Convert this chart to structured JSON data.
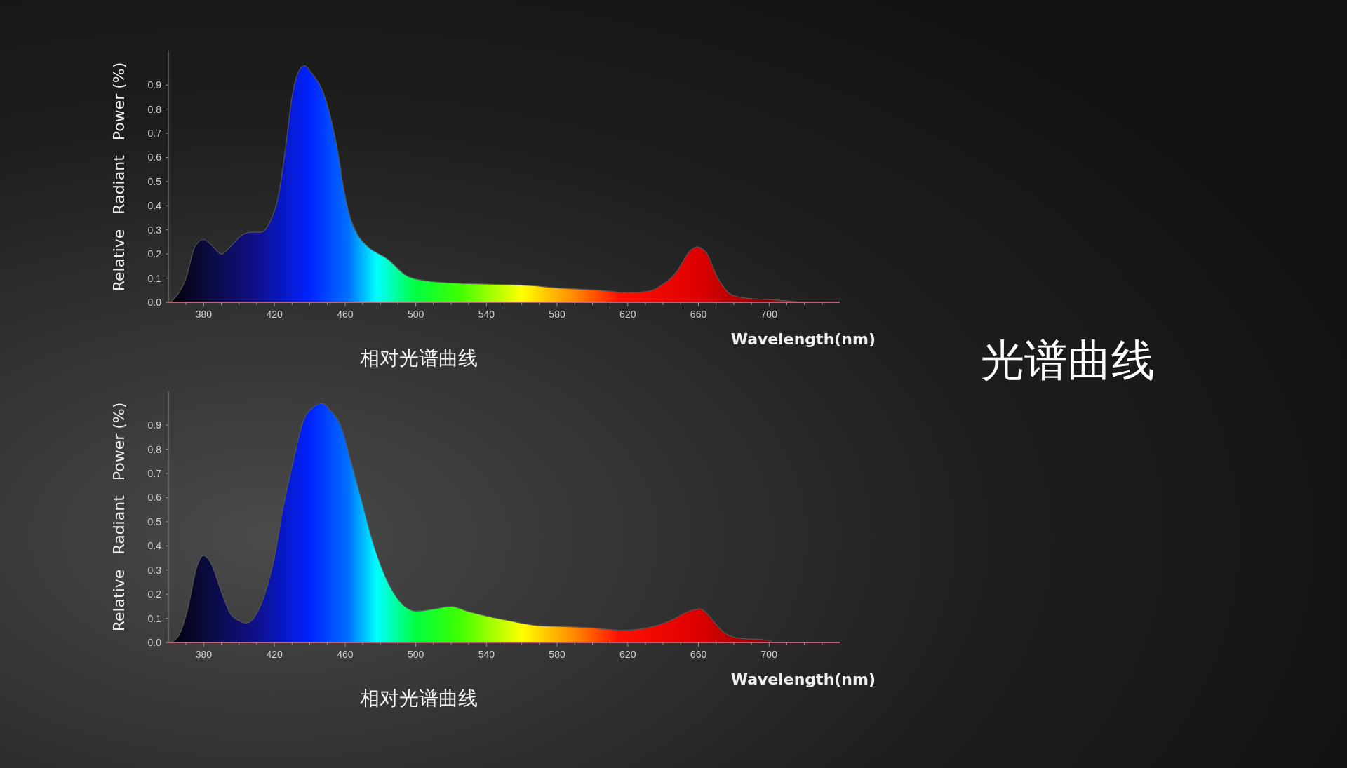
{
  "chart_data": [
    {
      "type": "area",
      "title": "相对光谱曲线",
      "xlabel": "Wavelength(nm)",
      "ylabel": "Relative   Radiant   Power (%)",
      "annotations": [
        "光谱曲线"
      ],
      "grid": false,
      "xlim": [
        360,
        740
      ],
      "ylim": [
        0,
        1.04
      ],
      "xticks": [
        {
          "value": 370,
          "label": null
        },
        380,
        {
          "value": 390,
          "label": null
        },
        {
          "value": 400,
          "label": null
        },
        {
          "value": 410,
          "label": null
        },
        420,
        {
          "value": 430,
          "label": null
        },
        {
          "value": 440,
          "label": null
        },
        {
          "value": 450,
          "label": null
        },
        460,
        {
          "value": 470,
          "label": null
        },
        {
          "value": 480,
          "label": null
        },
        {
          "value": 490,
          "label": null
        },
        500,
        {
          "value": 510,
          "label": null
        },
        {
          "value": 520,
          "label": null
        },
        {
          "value": 530,
          "label": null
        },
        540,
        {
          "value": 550,
          "label": null
        },
        {
          "value": 560,
          "label": null
        },
        {
          "value": 570,
          "label": null
        },
        580,
        {
          "value": 590,
          "label": null
        },
        {
          "value": 600,
          "label": null
        },
        {
          "value": 610,
          "label": null
        },
        620,
        {
          "value": 630,
          "label": null
        },
        {
          "value": 640,
          "label": null
        },
        {
          "value": 650,
          "label": null
        },
        660,
        {
          "value": 670,
          "label": null
        },
        {
          "value": 680,
          "label": null
        },
        {
          "value": 690,
          "label": null
        },
        700,
        {
          "value": 710,
          "label": null
        },
        {
          "value": 720,
          "label": null
        },
        {
          "value": 730,
          "label": null
        }
      ],
      "yticks": [
        {
          "value": 0,
          "label": "0.0"
        },
        0.1,
        0.2,
        0.3,
        0.4,
        0.5,
        0.6,
        0.7,
        0.8,
        0.9
      ],
      "series": [
        {
          "color": "#555555",
          "x": [
            361,
            364,
            370,
            375,
            380,
            384,
            390,
            395,
            402,
            407,
            412,
            418,
            422,
            426,
            430,
            434,
            437,
            441,
            447,
            452,
            456,
            459,
            463,
            468,
            473,
            484,
            495,
            505,
            521,
            543,
            564,
            580,
            604,
            620,
            631,
            639,
            647,
            655,
            659,
            664,
            671,
            679,
            687,
            703,
            719
          ],
          "values": [
            0,
            0.02,
            0.1,
            0.23,
            0.26,
            0.24,
            0.2,
            0.23,
            0.28,
            0.29,
            0.29,
            0.34,
            0.43,
            0.62,
            0.85,
            0.96,
            0.98,
            0.95,
            0.88,
            0.76,
            0.62,
            0.48,
            0.35,
            0.27,
            0.23,
            0.18,
            0.11,
            0.09,
            0.08,
            0.075,
            0.07,
            0.06,
            0.05,
            0.04,
            0.045,
            0.07,
            0.12,
            0.21,
            0.23,
            0.21,
            0.1,
            0.03,
            0.017,
            0.01,
            0
          ]
        }
      ]
    },
    {
      "type": "area",
      "title": "相对光谱曲线",
      "xlabel": "Wavelength(nm)",
      "ylabel": "Relative   Radiant   Power (%)",
      "grid": false,
      "xlim": [
        360,
        740
      ],
      "ylim": [
        0,
        1.04
      ],
      "xticks": [
        {
          "value": 370,
          "label": null
        },
        380,
        {
          "value": 390,
          "label": null
        },
        {
          "value": 400,
          "label": null
        },
        {
          "value": 410,
          "label": null
        },
        420,
        {
          "value": 430,
          "label": null
        },
        {
          "value": 440,
          "label": null
        },
        {
          "value": 450,
          "label": null
        },
        460,
        {
          "value": 470,
          "label": null
        },
        {
          "value": 480,
          "label": null
        },
        {
          "value": 490,
          "label": null
        },
        500,
        {
          "value": 510,
          "label": null
        },
        {
          "value": 520,
          "label": null
        },
        {
          "value": 530,
          "label": null
        },
        540,
        {
          "value": 550,
          "label": null
        },
        {
          "value": 560,
          "label": null
        },
        {
          "value": 570,
          "label": null
        },
        580,
        {
          "value": 590,
          "label": null
        },
        {
          "value": 600,
          "label": null
        },
        {
          "value": 610,
          "label": null
        },
        620,
        {
          "value": 630,
          "label": null
        },
        {
          "value": 640,
          "label": null
        },
        {
          "value": 650,
          "label": null
        },
        660,
        {
          "value": 670,
          "label": null
        },
        {
          "value": 680,
          "label": null
        },
        {
          "value": 690,
          "label": null
        },
        700,
        {
          "value": 710,
          "label": null
        },
        {
          "value": 720,
          "label": null
        },
        {
          "value": 730,
          "label": null
        }
      ],
      "yticks": [
        {
          "value": 0,
          "label": "0.0"
        },
        0.1,
        0.2,
        0.3,
        0.4,
        0.5,
        0.6,
        0.7,
        0.8,
        0.9
      ],
      "series": [
        {
          "color": "#555555",
          "x": [
            361,
            366,
            371,
            376,
            380,
            384,
            390,
            395,
            400,
            404,
            410,
            415,
            420,
            425,
            431,
            436,
            443,
            447,
            452,
            458,
            463,
            469,
            476,
            483,
            491,
            500,
            511,
            520,
            529,
            540,
            553,
            569,
            585,
            601,
            617,
            631,
            644,
            655,
            661,
            666,
            673,
            681,
            700,
            702
          ],
          "values": [
            0,
            0.03,
            0.14,
            0.31,
            0.36,
            0.33,
            0.21,
            0.12,
            0.09,
            0.08,
            0.12,
            0.21,
            0.35,
            0.56,
            0.76,
            0.91,
            0.98,
            0.99,
            0.96,
            0.89,
            0.76,
            0.6,
            0.41,
            0.27,
            0.17,
            0.13,
            0.14,
            0.15,
            0.13,
            0.11,
            0.09,
            0.07,
            0.066,
            0.06,
            0.05,
            0.06,
            0.09,
            0.13,
            0.14,
            0.11,
            0.05,
            0.02,
            0.008,
            0
          ]
        }
      ]
    }
  ]
}
